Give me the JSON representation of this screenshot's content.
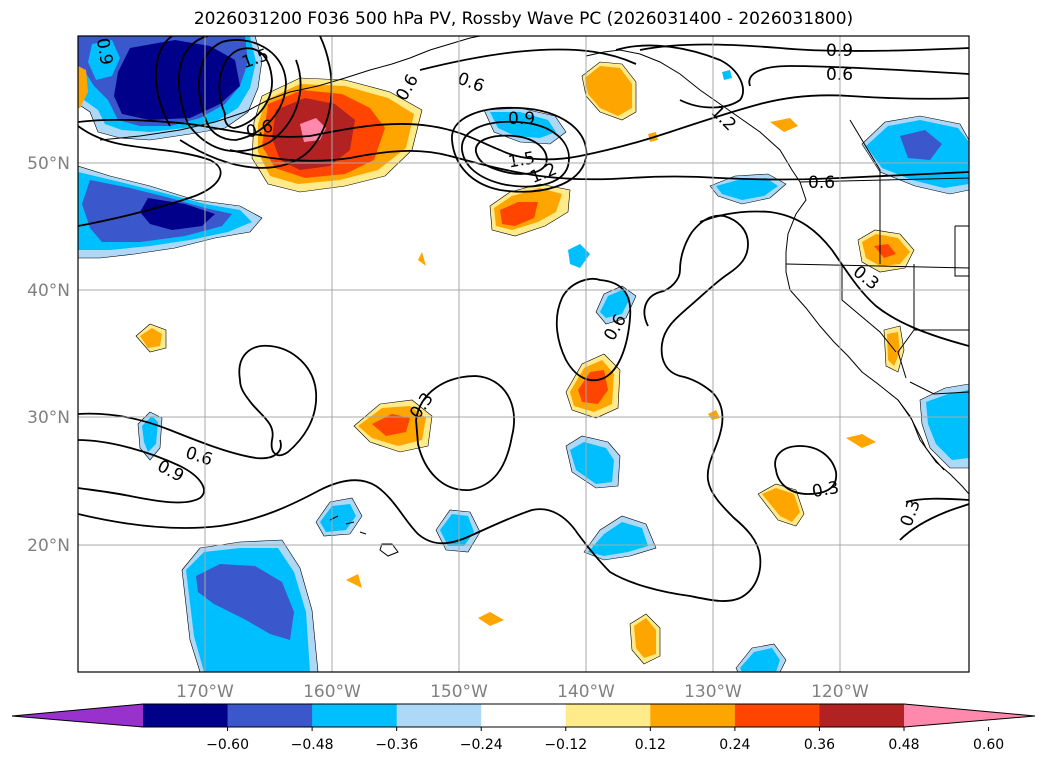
{
  "title": "2026031200 F036 500 hPa PV, Rossby Wave PC (2026031400 - 2026031800)",
  "axes": {
    "lon_labels": [
      "170°W",
      "160°W",
      "150°W",
      "140°W",
      "130°W",
      "120°W"
    ],
    "lat_labels": [
      "50°N",
      "40°N",
      "30°N",
      "20°N"
    ]
  },
  "contour_labels": [
    "0.3",
    "0.6",
    "0.9",
    "1.2",
    "1.5",
    "0.3",
    "0.6",
    "0.9",
    "1.2",
    "1.5",
    "0.6",
    "0.9",
    "0.9",
    "0.6",
    "0.6",
    "0.6",
    "0.3",
    "0.6",
    "0.3",
    "0.3",
    "0.6",
    "0.9",
    "0.3"
  ],
  "colorbar": {
    "ticks": [
      "−0.60",
      "−0.48",
      "−0.36",
      "−0.24",
      "−0.12",
      "0.12",
      "0.24",
      "0.36",
      "0.48",
      "0.60"
    ],
    "colors": [
      "#9932cc",
      "#00008b",
      "#3a57cb",
      "#00bfff",
      "#add8f8",
      "#ffffff",
      "#ffeb8a",
      "#ffa500",
      "#ff4500",
      "#b22222",
      "#ff88ad"
    ]
  },
  "palette": {
    "neg1": "#add8f8",
    "neg2": "#00bfff",
    "neg3": "#3a57cb",
    "neg4": "#00008b",
    "pos1": "#ffeb8a",
    "pos2": "#ffa500",
    "pos3": "#ff4500",
    "pos4": "#b22222",
    "pos5": "#ff88ad"
  }
}
